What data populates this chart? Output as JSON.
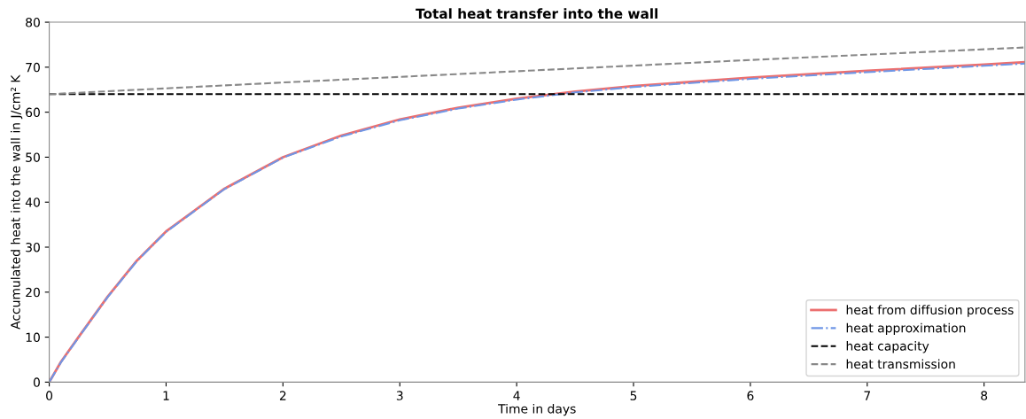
{
  "chart_data": {
    "type": "line",
    "title": "Total heat transfer into the wall",
    "xlabel": "Time in days",
    "ylabel": "Accumulated heat into the wall in J/cm² K",
    "xlim": [
      0,
      8.35
    ],
    "ylim": [
      0,
      80
    ],
    "xticks": [
      0,
      1,
      2,
      3,
      4,
      5,
      6,
      7,
      8
    ],
    "yticks": [
      0,
      10,
      20,
      30,
      40,
      50,
      60,
      70,
      80
    ],
    "grid": false,
    "legend": "bottom right",
    "series": [
      {
        "name": "heat from diffusion process",
        "color": "#ec6f6f",
        "line_style": "solid",
        "x": [
          0,
          0.1,
          0.25,
          0.5,
          0.75,
          1,
          1.5,
          2,
          2.5,
          3,
          3.5,
          4,
          4.5,
          5,
          6,
          7,
          8,
          8.35
        ],
        "values": [
          0,
          4.5,
          10,
          19,
          27,
          33.5,
          43,
          50,
          54.8,
          58.4,
          61,
          63,
          64.6,
          65.8,
          67.7,
          69.2,
          70.6,
          71.1
        ]
      },
      {
        "name": "heat approximation",
        "color": "#6f96e6",
        "line_style": "dashdot",
        "x": [
          0,
          0.1,
          0.25,
          0.5,
          0.75,
          1,
          1.5,
          2,
          2.5,
          3,
          3.5,
          4,
          4.5,
          5,
          6,
          7,
          8,
          8.35
        ],
        "values": [
          0,
          4.4,
          9.9,
          18.9,
          26.9,
          33.4,
          42.9,
          49.9,
          54.6,
          58.2,
          60.8,
          62.8,
          64.4,
          65.6,
          67.4,
          68.9,
          70.3,
          70.8
        ]
      },
      {
        "name": "heat capacity",
        "color": "#000000",
        "line_style": "dashed",
        "x": [
          0,
          8.35
        ],
        "values": [
          64,
          64
        ]
      },
      {
        "name": "heat transmission",
        "color": "#888888",
        "line_style": "dashed",
        "x": [
          0,
          2,
          4,
          6,
          8.35
        ],
        "values": [
          64,
          66.6,
          69.1,
          71.6,
          74.4
        ]
      }
    ]
  }
}
